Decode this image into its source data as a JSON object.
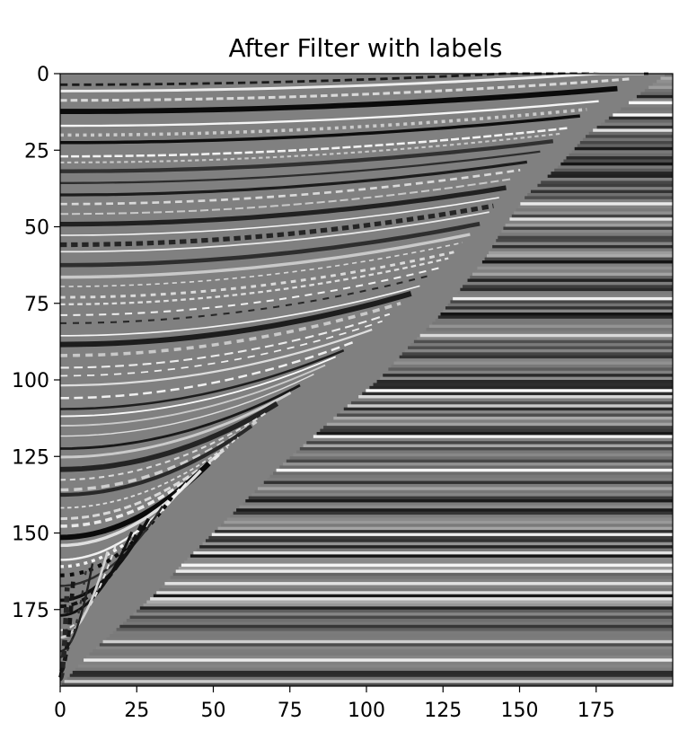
{
  "chart_data": {
    "type": "heatmap",
    "title": "After Filter with labels",
    "colormap": "gray",
    "xlim": [
      0,
      200
    ],
    "ylim": [
      200,
      0
    ],
    "xticks": [
      0,
      25,
      50,
      75,
      100,
      125,
      150,
      175
    ],
    "yticks": [
      0,
      25,
      50,
      75,
      100,
      125,
      150,
      175
    ],
    "xticklabels": [
      "0",
      "25",
      "50",
      "75",
      "100",
      "125",
      "150",
      "175"
    ],
    "yticklabels": [
      "0",
      "25",
      "50",
      "75",
      "100",
      "125",
      "150",
      "175"
    ],
    "rows": 200,
    "cols": 200,
    "wedge_boundary": {
      "y": [
        0,
        10,
        20,
        30,
        40,
        50,
        60,
        70,
        80,
        90,
        100,
        110,
        120,
        130,
        140,
        150,
        160,
        170,
        180,
        190,
        200
      ],
      "x_end": [
        198,
        185,
        172,
        163,
        152,
        145,
        139,
        131,
        123,
        113,
        104,
        92,
        81,
        70,
        60,
        50,
        40,
        31,
        20,
        9,
        0
      ]
    },
    "grid": false
  }
}
